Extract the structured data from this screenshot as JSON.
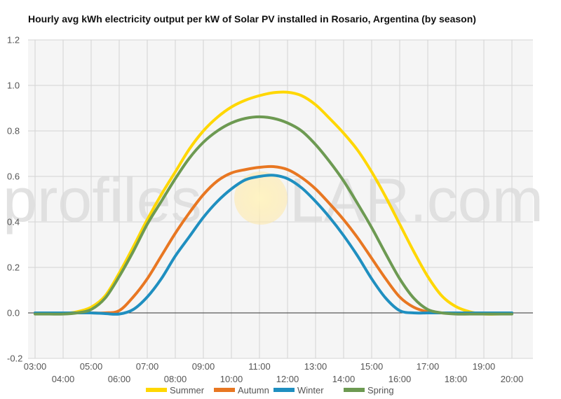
{
  "chart_data": {
    "type": "line",
    "title": "Hourly avg kWh electricity output per kW of Solar PV installed in Rosario, Argentina (by season)",
    "xlabel": "",
    "ylabel": "",
    "ylim": [
      -0.2,
      1.2
    ],
    "yticks": [
      -0.2,
      0.0,
      0.2,
      0.4,
      0.6,
      0.8,
      1.0,
      1.2
    ],
    "ytick_labels": [
      "-0.2",
      "0.0",
      "0.2",
      "0.4",
      "0.6",
      "0.8",
      "1.0",
      "1.2"
    ],
    "x_tick_labels": [
      "03:00",
      "04:00",
      "05:00",
      "06:00",
      "07:00",
      "08:00",
      "09:00",
      "10:00",
      "11:00",
      "12:00",
      "13:00",
      "14:00",
      "15:00",
      "16:00",
      "17:00",
      "18:00",
      "19:00",
      "20:00"
    ],
    "grid": true,
    "legend_position": "bottom",
    "x": [
      3.0,
      3.5,
      4.0,
      4.5,
      5.0,
      5.5,
      6.0,
      6.5,
      7.0,
      7.5,
      8.0,
      8.5,
      9.0,
      9.5,
      10.0,
      10.5,
      11.0,
      11.5,
      12.0,
      12.5,
      13.0,
      13.5,
      14.0,
      14.5,
      15.0,
      15.5,
      16.0,
      16.5,
      17.0,
      17.5,
      18.0,
      18.5,
      19.0,
      19.5,
      20.0
    ],
    "series": [
      {
        "name": "Summer",
        "color": "#ffd700",
        "values": [
          0.0,
          -0.003,
          -0.003,
          0.005,
          0.025,
          0.075,
          0.175,
          0.29,
          0.41,
          0.52,
          0.62,
          0.72,
          0.8,
          0.86,
          0.905,
          0.935,
          0.955,
          0.968,
          0.97,
          0.955,
          0.915,
          0.855,
          0.79,
          0.715,
          0.62,
          0.51,
          0.39,
          0.27,
          0.16,
          0.075,
          0.028,
          0.005,
          -0.005,
          -0.005,
          -0.003
        ]
      },
      {
        "name": "Autumn",
        "color": "#e87722",
        "values": [
          0.0,
          0.0,
          0.0,
          0.0,
          0.0,
          0.0,
          0.01,
          0.07,
          0.15,
          0.25,
          0.35,
          0.44,
          0.52,
          0.58,
          0.615,
          0.63,
          0.64,
          0.643,
          0.63,
          0.595,
          0.545,
          0.48,
          0.41,
          0.33,
          0.24,
          0.15,
          0.07,
          0.025,
          0.005,
          0.0,
          0.0,
          0.0,
          0.0,
          0.0,
          0.0
        ]
      },
      {
        "name": "Winter",
        "color": "#1f8fc0",
        "values": [
          0.0,
          0.0,
          0.0,
          0.0,
          0.0,
          -0.003,
          -0.005,
          0.015,
          0.07,
          0.15,
          0.25,
          0.335,
          0.42,
          0.49,
          0.545,
          0.585,
          0.6,
          0.605,
          0.59,
          0.55,
          0.49,
          0.42,
          0.34,
          0.25,
          0.15,
          0.065,
          0.01,
          0.0,
          0.0,
          0.0,
          0.0,
          0.0,
          0.0,
          0.0,
          0.0
        ]
      },
      {
        "name": "Spring",
        "color": "#6d9a52",
        "values": [
          -0.005,
          -0.005,
          -0.005,
          0.0,
          0.015,
          0.065,
          0.16,
          0.27,
          0.39,
          0.49,
          0.59,
          0.68,
          0.75,
          0.8,
          0.835,
          0.855,
          0.862,
          0.855,
          0.835,
          0.8,
          0.74,
          0.665,
          0.58,
          0.48,
          0.375,
          0.26,
          0.15,
          0.065,
          0.015,
          0.0,
          -0.005,
          -0.005,
          -0.005,
          -0.005,
          -0.005
        ]
      }
    ]
  },
  "watermark": {
    "left": "profiles",
    "right": "LAR.com"
  }
}
